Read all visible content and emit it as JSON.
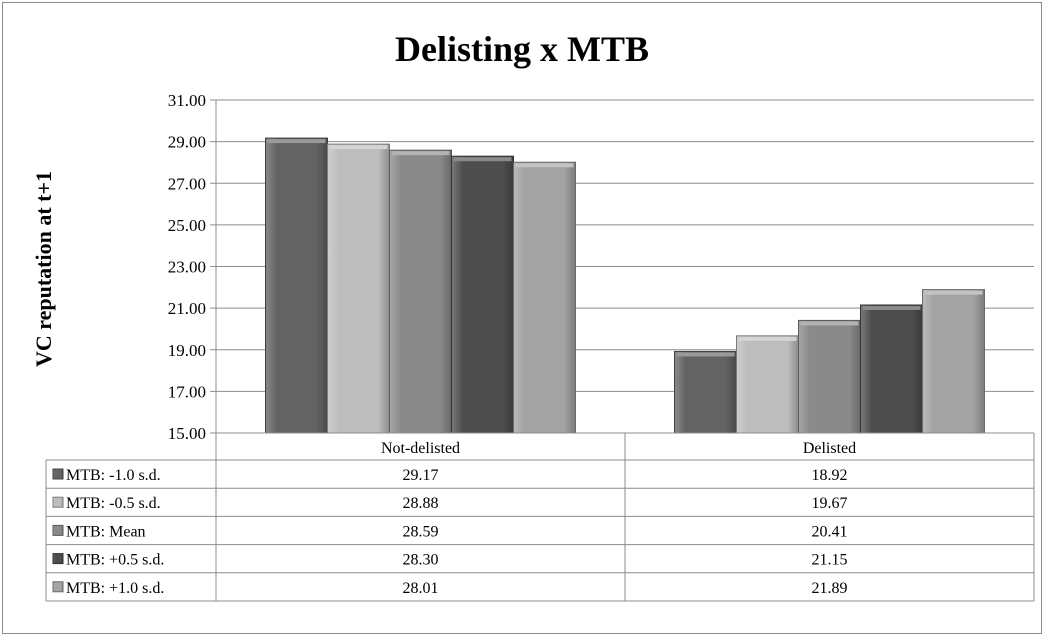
{
  "chart_data": {
    "type": "bar",
    "title": "Delisting x MTB",
    "ylabel": "VC reputation  at t+1",
    "xlabel": "",
    "ylim": [
      15,
      31
    ],
    "yticks": [
      "15.00",
      "17.00",
      "19.00",
      "21.00",
      "23.00",
      "25.00",
      "27.00",
      "29.00",
      "31.00"
    ],
    "categories": [
      "Not-delisted",
      "Delisted"
    ],
    "grid": true,
    "legend": "data-table",
    "series": [
      {
        "name": "MTB: -1.0 s.d.",
        "values": [
          29.17,
          18.92
        ],
        "labels": [
          "29.17",
          "18.92"
        ],
        "color": "#636363"
      },
      {
        "name": "MTB: -0.5 s.d.",
        "values": [
          28.88,
          19.67
        ],
        "labels": [
          "28.88",
          "19.67"
        ],
        "color": "#bdbdbd"
      },
      {
        "name": "MTB: Mean",
        "values": [
          28.59,
          20.41
        ],
        "labels": [
          "28.59",
          "20.41"
        ],
        "color": "#8a8a8a"
      },
      {
        "name": "MTB: +0.5 s.d.",
        "values": [
          28.3,
          21.15
        ],
        "labels": [
          "28.30",
          "21.15"
        ],
        "color": "#4d4d4d"
      },
      {
        "name": "MTB: +1.0 s.d.",
        "values": [
          28.01,
          21.89
        ],
        "labels": [
          "28.01",
          "21.89"
        ],
        "color": "#a3a3a3"
      }
    ]
  }
}
